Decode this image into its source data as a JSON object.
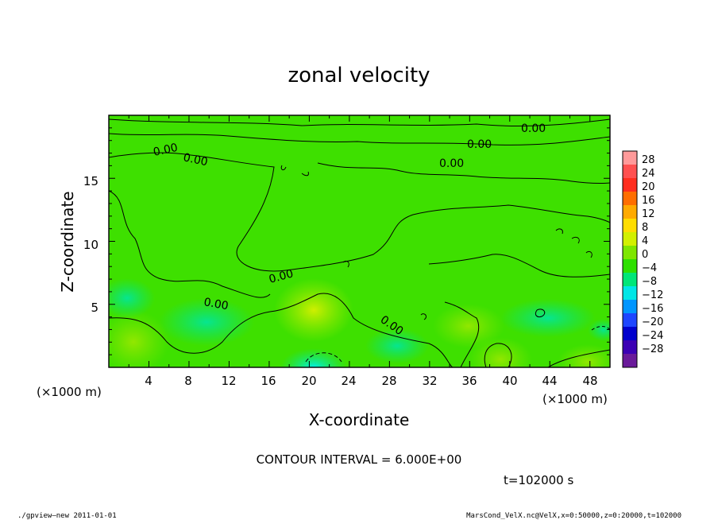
{
  "chart_data": {
    "type": "heatmap",
    "title": "zonal velocity",
    "xlabel": "X-coordinate",
    "ylabel": "Z-coordinate",
    "x_unit": "(×1000 m)",
    "y_unit": "(×1000 m)",
    "xlim": [
      0,
      50
    ],
    "ylim": [
      0,
      20
    ],
    "x_ticks": [
      "4",
      "8",
      "12",
      "16",
      "20",
      "24",
      "28",
      "32",
      "36",
      "40",
      "44",
      "48"
    ],
    "y_ticks": [
      "5",
      "10",
      "15"
    ],
    "colorbar": {
      "labels": [
        "28",
        "24",
        "20",
        "16",
        "12",
        "8",
        "4",
        "0",
        "−4",
        "−8",
        "−12",
        "−16",
        "−20",
        "−24",
        "−28"
      ],
      "colors": [
        "#ff9a9a",
        "#ff5050",
        "#ff2d1e",
        "#ff6e00",
        "#ffaa00",
        "#ffdd00",
        "#d2f000",
        "#7ee600",
        "#2ee000",
        "#00e678",
        "#00e6e6",
        "#0096ff",
        "#1e46ff",
        "#0000cd",
        "#3c00b4",
        "#6a1a9a"
      ]
    },
    "contour_label": "0.00",
    "contour_interval": "CONTOUR INTERVAL = 6.000E+00",
    "time": "t=102000 s"
  },
  "footer": {
    "left": "./gpview—new   2011-01-01",
    "right": "MarsCond_VelX.nc@VelX,x=0:50000,z=0:20000,t=102000"
  }
}
